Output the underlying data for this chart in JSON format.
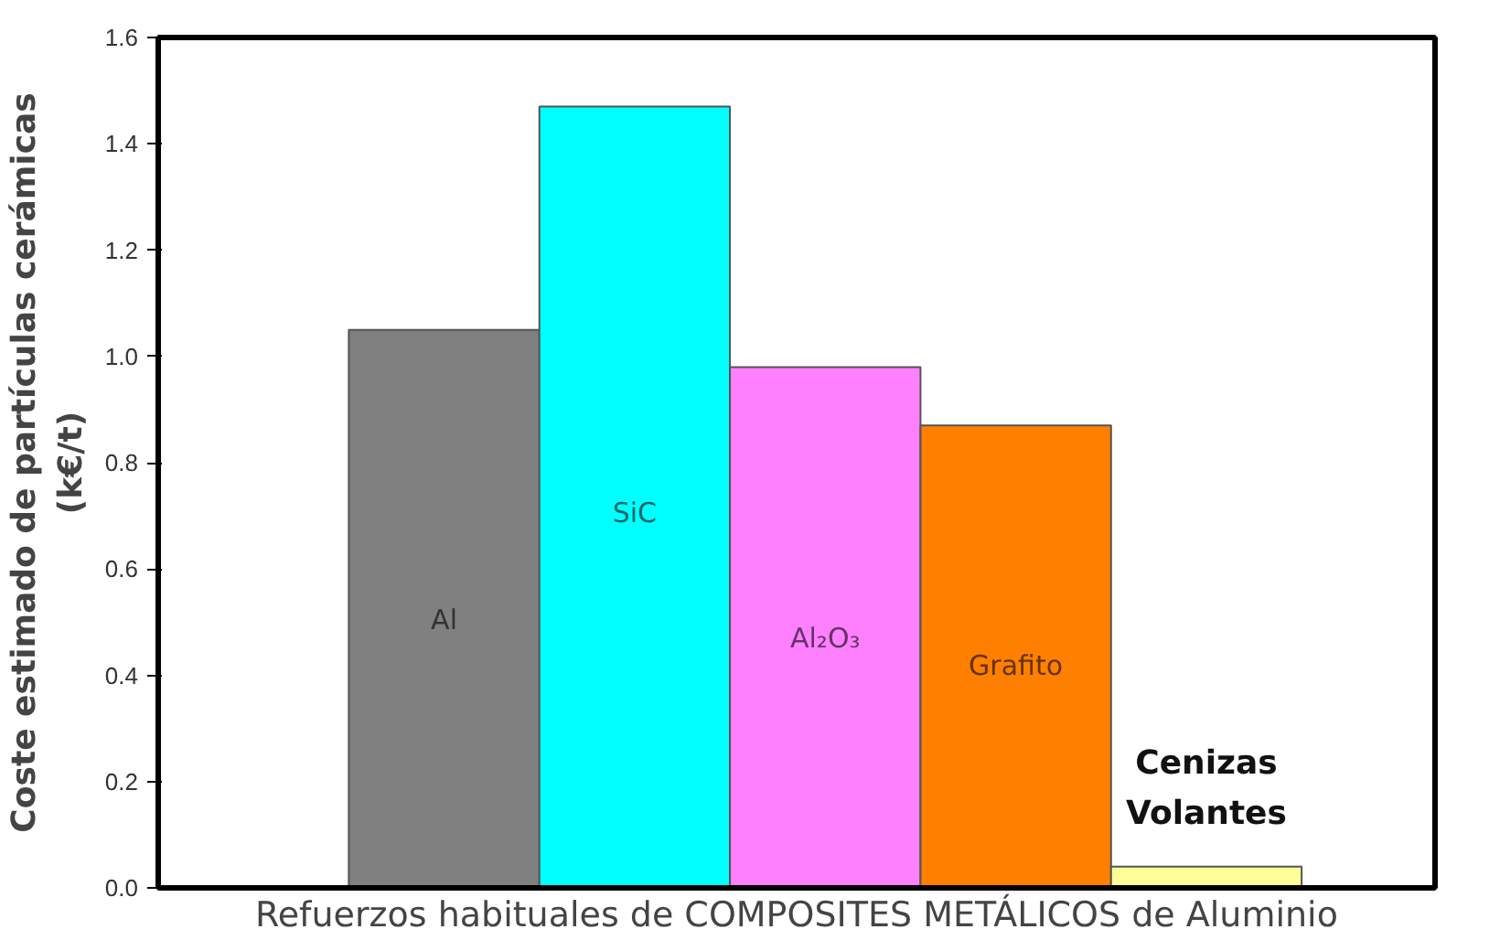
{
  "chart_data": {
    "type": "bar",
    "xlabel": "Refuerzos habituales de COMPOSITES METÁLICOS de Aluminio",
    "ylabel": "Coste estimado de partículas cerámicas\n(k€/t)",
    "categories": [
      "Al",
      "SiC",
      "Al₂O₃",
      "Grafito",
      "Cenizas Volantes"
    ],
    "values": [
      1.05,
      1.47,
      0.98,
      0.87,
      0.04
    ],
    "colors": [
      "#808080",
      "#00ffff",
      "#ff80ff",
      "#ff8000",
      "#ffff99"
    ],
    "ylim": [
      0,
      1.6
    ],
    "yticks": [
      {
        "value": 0,
        "label": "0.0"
      },
      {
        "value": 0.2,
        "label": "0.2"
      },
      {
        "value": 0.4,
        "label": "0.4"
      },
      {
        "value": 0.6,
        "label": "0.6"
      },
      {
        "value": 0.8,
        "label": "0.8"
      },
      {
        "value": 1.0,
        "label": "1.0"
      },
      {
        "value": 1.2,
        "label": "1.2"
      },
      {
        "value": 1.4,
        "label": "1.4"
      },
      {
        "value": 1.6,
        "label": "1.6"
      }
    ],
    "grid": false
  }
}
